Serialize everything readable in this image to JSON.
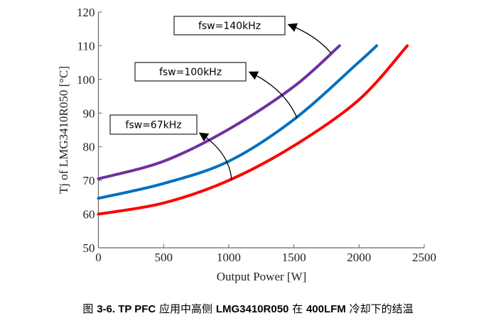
{
  "chart_data": {
    "type": "line",
    "xlabel": "Output Power [W]",
    "ylabel": "Tj of LMG3410R050 [°C]",
    "xlim": [
      0,
      2500
    ],
    "ylim": [
      50,
      120
    ],
    "xticks": [
      0,
      500,
      1000,
      1500,
      2000,
      2500
    ],
    "yticks": [
      50,
      60,
      70,
      80,
      90,
      100,
      110,
      120
    ],
    "grid": false,
    "series": [
      {
        "name": "fsw=140kHz",
        "color": "#7030a0",
        "x": [
          0,
          500,
          1000,
          1500,
          1850
        ],
        "y": [
          70.5,
          75.7,
          85.2,
          97.9,
          110
        ]
      },
      {
        "name": "fsw=100kHz",
        "color": "#0070c0",
        "x": [
          0,
          500,
          1000,
          1500,
          2000,
          2135
        ],
        "y": [
          64.7,
          69.1,
          75.7,
          88.1,
          105.2,
          110
        ]
      },
      {
        "name": "fsw=67kHz",
        "color": "#ff0000",
        "x": [
          0,
          500,
          1000,
          1500,
          2000,
          2370
        ],
        "y": [
          60,
          63.3,
          70.0,
          80.3,
          94.0,
          110
        ]
      }
    ]
  },
  "caption": {
    "prefix": "图 ",
    "fig": "3-6. TP PFC",
    "t1": " 应用中高侧 ",
    "part": "LMG3410R050",
    "t2": " 在 ",
    "lfm": "400LFM",
    "t3": " 冷却下的结温"
  }
}
